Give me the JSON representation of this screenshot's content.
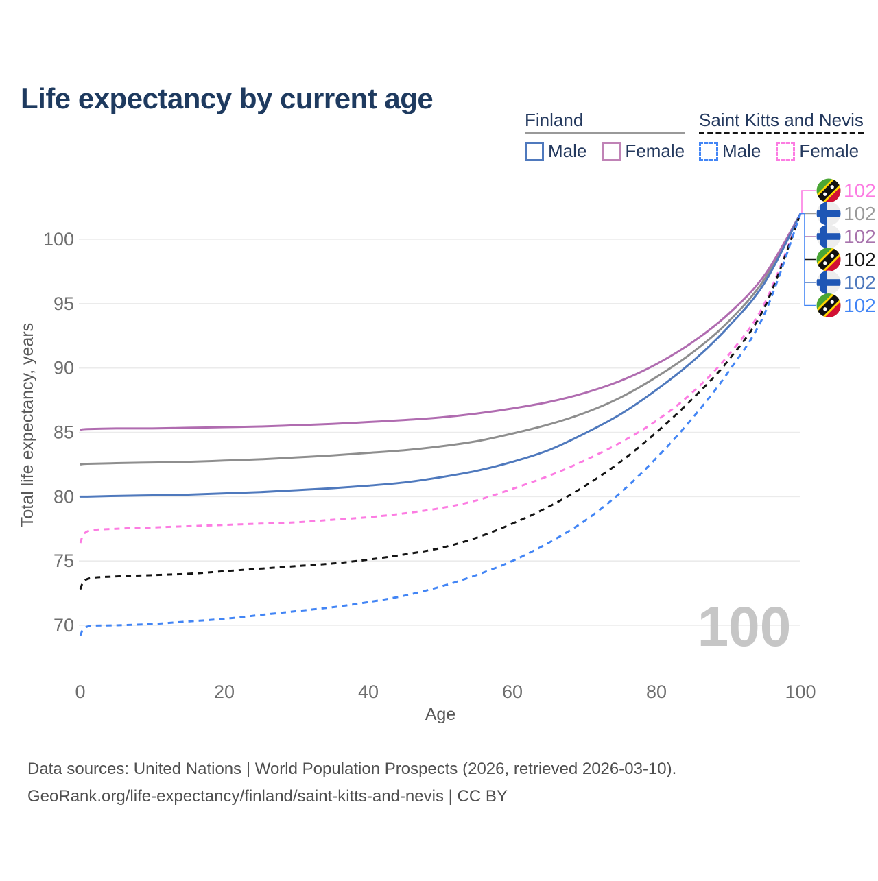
{
  "page": {
    "title": "Life expectancy by current age"
  },
  "legend": {
    "groups": [
      {
        "label": "Finland",
        "line_style": "solid",
        "line_color": "#999999",
        "items": [
          {
            "label": "Male",
            "color": "#4f79bd",
            "style": "solid"
          },
          {
            "label": "Female",
            "color": "#c083b6",
            "style": "solid"
          }
        ]
      },
      {
        "label": "Saint Kitts and Nevis",
        "line_style": "dashed",
        "line_color": "#141414",
        "items": [
          {
            "label": "Male",
            "color": "#4285f5",
            "style": "dashed"
          },
          {
            "label": "Female",
            "color": "#fc7ce2",
            "style": "dashed"
          }
        ]
      }
    ]
  },
  "chart_data": {
    "type": "line",
    "title": "Life expectancy by current age",
    "xlabel": "Age",
    "ylabel": "Total life expectancy, years",
    "x_ticks": [
      0,
      20,
      40,
      60,
      80,
      100
    ],
    "y_ticks": [
      70,
      75,
      80,
      85,
      90,
      95,
      100
    ],
    "xlim": [
      0,
      100
    ],
    "ylim": [
      69,
      103
    ],
    "grid": "horizontal-only",
    "gridline_color": "#ebebeb",
    "tick_color": "#6e6e6e",
    "watermark": "100",
    "watermark_color": "#c6c6c6",
    "x": [
      0,
      1,
      5,
      10,
      15,
      20,
      25,
      30,
      35,
      40,
      45,
      50,
      55,
      60,
      65,
      70,
      75,
      80,
      85,
      90,
      95,
      100
    ],
    "series": [
      {
        "name": "Finland (both sexes)",
        "country": "Finland",
        "sex": "all",
        "color": "#8e8e8e",
        "dash": false,
        "values": [
          82.5,
          82.55,
          82.6,
          82.65,
          82.7,
          82.8,
          82.9,
          83.05,
          83.2,
          83.4,
          83.6,
          83.9,
          84.3,
          84.9,
          85.6,
          86.5,
          87.7,
          89.3,
          91.2,
          93.6,
          96.9,
          102
        ]
      },
      {
        "name": "Finland Female",
        "country": "Finland",
        "sex": "female",
        "color": "#b06cb0",
        "dash": false,
        "values": [
          85.2,
          85.25,
          85.3,
          85.3,
          85.35,
          85.4,
          85.45,
          85.55,
          85.65,
          85.8,
          85.95,
          86.15,
          86.45,
          86.85,
          87.35,
          88.05,
          89.0,
          90.3,
          92.0,
          94.2,
          97.2,
          102
        ]
      },
      {
        "name": "Finland Male",
        "country": "Finland",
        "sex": "male",
        "color": "#4f79bd",
        "dash": false,
        "values": [
          80.0,
          80.0,
          80.05,
          80.1,
          80.15,
          80.25,
          80.35,
          80.5,
          80.65,
          80.85,
          81.1,
          81.5,
          82.0,
          82.7,
          83.6,
          84.9,
          86.4,
          88.3,
          90.5,
          93.2,
          96.6,
          102
        ]
      },
      {
        "name": "Saint Kitts and Nevis Female",
        "country": "Saint Kitts and Nevis",
        "sex": "female",
        "color": "#fc7ce2",
        "dash": true,
        "values": [
          76.4,
          77.3,
          77.5,
          77.6,
          77.7,
          77.8,
          77.9,
          78.0,
          78.2,
          78.4,
          78.7,
          79.1,
          79.7,
          80.6,
          81.6,
          82.8,
          84.2,
          85.9,
          88.1,
          91.0,
          95.0,
          102
        ]
      },
      {
        "name": "Saint Kitts and Nevis (both sexes)",
        "country": "Saint Kitts and Nevis",
        "sex": "all",
        "color": "#141414",
        "dash": true,
        "values": [
          72.8,
          73.6,
          73.8,
          73.9,
          74.0,
          74.2,
          74.4,
          74.6,
          74.8,
          75.1,
          75.5,
          76.0,
          76.8,
          77.9,
          79.2,
          80.8,
          82.7,
          85.0,
          87.6,
          90.6,
          94.7,
          102
        ]
      },
      {
        "name": "Saint Kitts and Nevis Male",
        "country": "Saint Kitts and Nevis",
        "sex": "male",
        "color": "#4285f5",
        "dash": true,
        "values": [
          69.2,
          69.9,
          70.0,
          70.1,
          70.3,
          70.5,
          70.8,
          71.1,
          71.4,
          71.8,
          72.3,
          73.0,
          73.9,
          75.0,
          76.4,
          78.1,
          80.3,
          83.0,
          86.1,
          89.7,
          94.2,
          102
        ]
      }
    ],
    "end_labels": [
      {
        "flag": "saint-kitts-and-nevis",
        "value": "102",
        "color": "#fc7ce2"
      },
      {
        "flag": "finland",
        "value": "102",
        "color": "#9a9a9a"
      },
      {
        "flag": "finland",
        "value": "102",
        "color": "#a874ad"
      },
      {
        "flag": "saint-kitts-and-nevis",
        "value": "102",
        "color": "#141414"
      },
      {
        "flag": "finland",
        "value": "102",
        "color": "#4f79bd"
      },
      {
        "flag": "saint-kitts-and-nevis",
        "value": "102",
        "color": "#4285f5"
      }
    ]
  },
  "footer": {
    "line1": "Data sources: United Nations | World Population Prospects (2026, retrieved 2026-03-10).",
    "line2": "GeoRank.org/life-expectancy/finland/saint-kitts-and-nevis | CC BY"
  }
}
